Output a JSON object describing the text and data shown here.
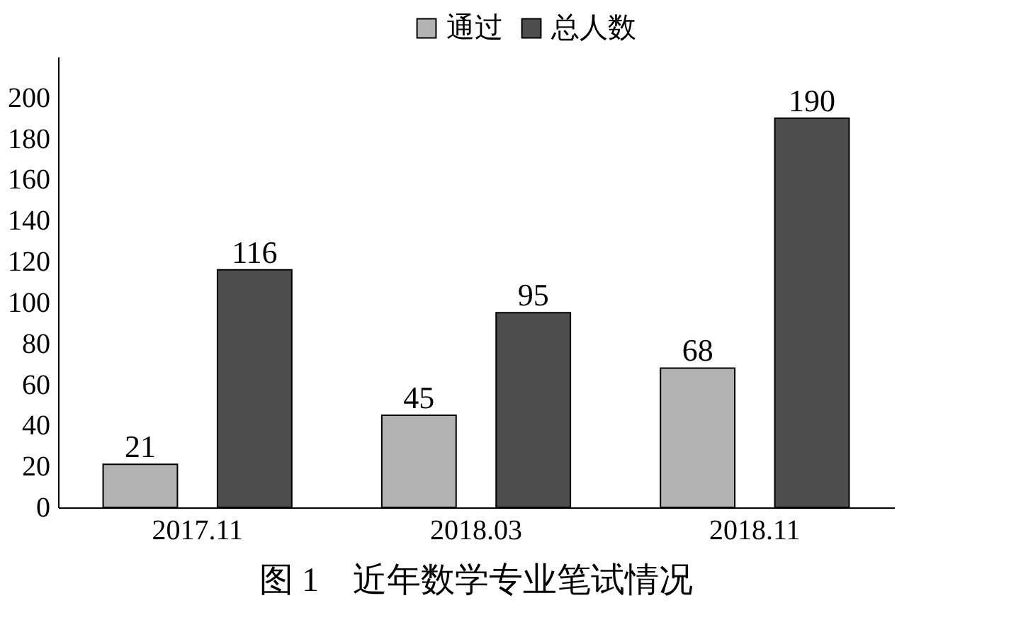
{
  "chart_data": {
    "type": "bar",
    "title": "图 1　近年数学专业笔试情况",
    "categories": [
      "2017.11",
      "2018.03",
      "2018.11"
    ],
    "series": [
      {
        "name": "通过",
        "color": "#b3b3b3",
        "values": [
          21,
          45,
          68
        ]
      },
      {
        "name": "总人数",
        "color": "#4d4d4d",
        "values": [
          116,
          95,
          190
        ]
      }
    ],
    "ylim": [
      0,
      220
    ],
    "yticks": [
      0,
      20,
      40,
      60,
      80,
      100,
      120,
      140,
      160,
      180,
      200
    ],
    "data_labels": true,
    "legend": "top",
    "grid": false
  }
}
